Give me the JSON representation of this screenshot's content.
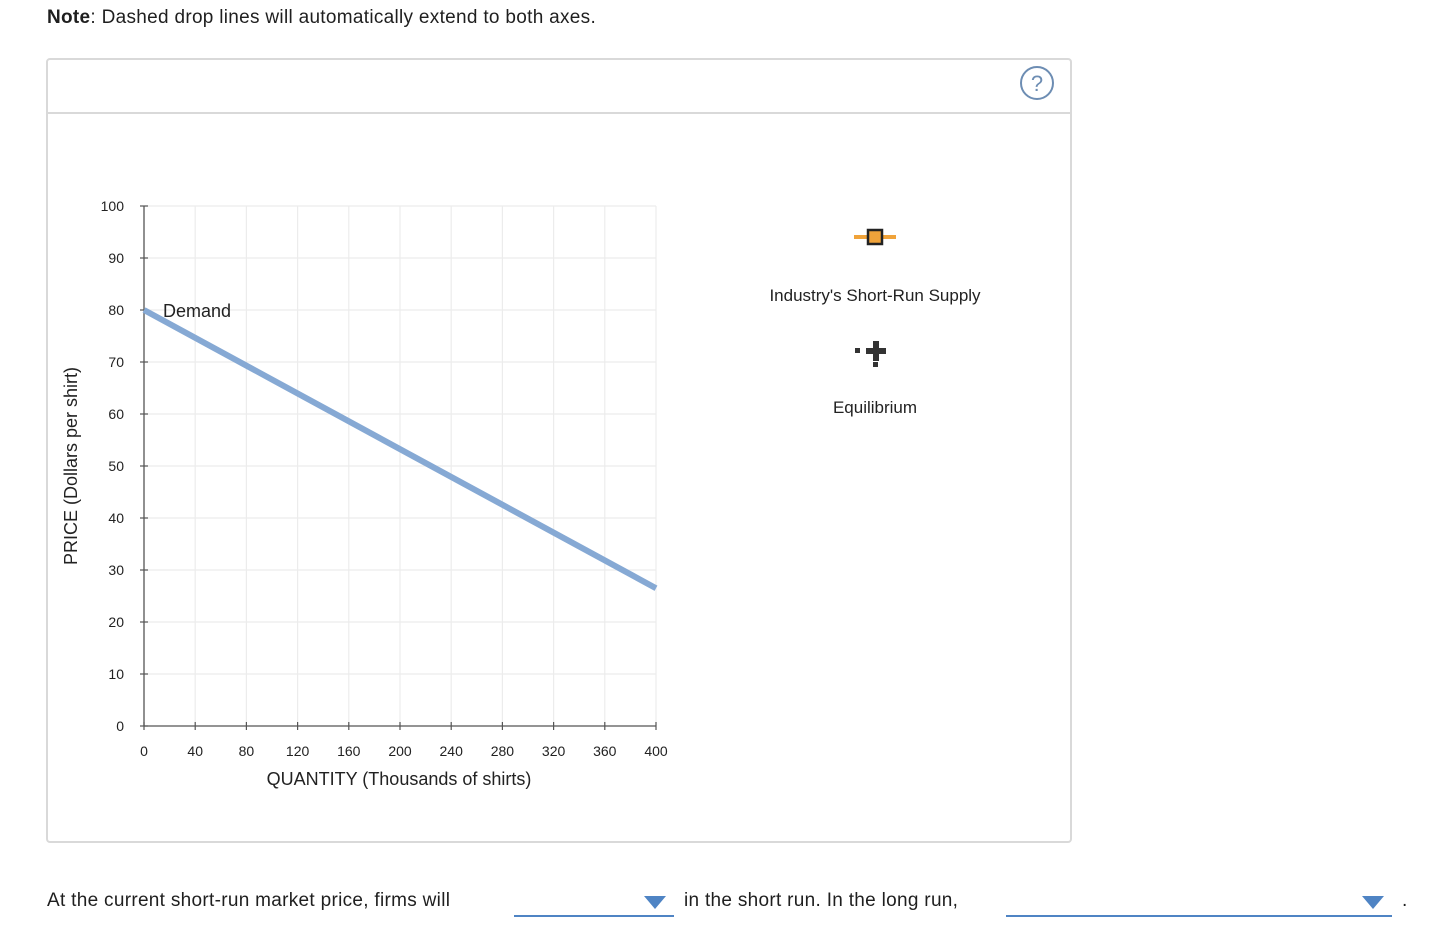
{
  "note": {
    "bold": "Note",
    "text": ": Dashed drop lines will automatically extend to both axes."
  },
  "help_icon": "?",
  "chart_data": {
    "type": "line",
    "xlabel": "QUANTITY (Thousands of shirts)",
    "ylabel": "PRICE (Dollars per shirt)",
    "xlim": [
      0,
      400
    ],
    "ylim": [
      0,
      100
    ],
    "x_ticks": [
      0,
      40,
      80,
      120,
      160,
      200,
      240,
      280,
      320,
      360,
      400
    ],
    "y_ticks": [
      0,
      10,
      20,
      30,
      40,
      50,
      60,
      70,
      80,
      90,
      100
    ],
    "grid": true,
    "series": [
      {
        "name": "Demand",
        "color": "#86a9d4",
        "points": [
          [
            0,
            80
          ],
          [
            400,
            26.5
          ]
        ]
      }
    ],
    "legend_tools": [
      {
        "name": "Industry's Short-Run Supply",
        "icon": "orange-line-square-marker",
        "color": "#f0a33a"
      },
      {
        "name": "Equilibrium",
        "icon": "black-plus-dropline-marker",
        "color": "#333333"
      }
    ]
  },
  "question": {
    "part1": "At the current short-run market price, firms will",
    "part2": "in the short run. In the long run,",
    "part3": ".",
    "dropdown1_value": "",
    "dropdown2_value": ""
  }
}
